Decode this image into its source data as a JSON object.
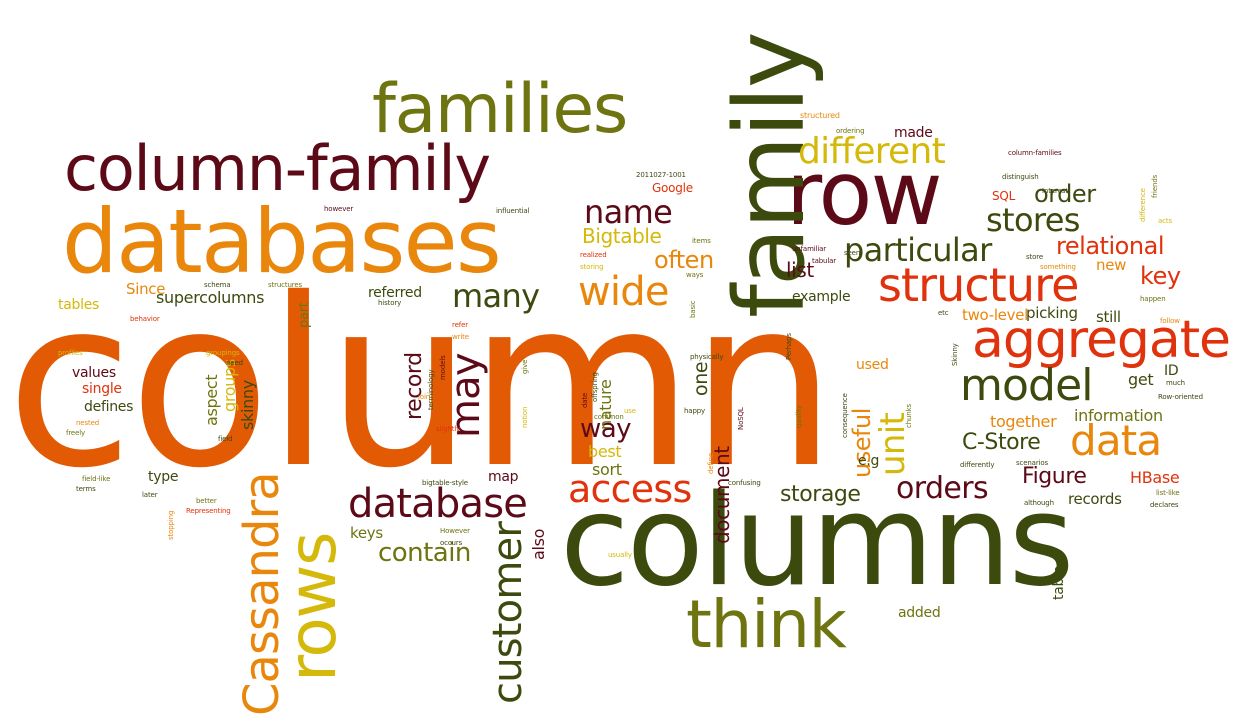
{
  "words": {
    "column": "column",
    "columns": "columns",
    "databases": "databases",
    "column_family": "column-family",
    "families": "families",
    "family": "family",
    "row": "row",
    "think": "think",
    "rows": "rows",
    "cassandra": "Cassandra",
    "customer": "customer",
    "database": "database",
    "model": "model",
    "aggregate": "aggregate",
    "data": "data",
    "structure": "structure",
    "different": "different",
    "access": "access",
    "wide": "wide",
    "many": "many",
    "name": "name",
    "may": "may",
    "particular": "particular",
    "stores": "stores",
    "order": "order",
    "relational": "relational",
    "orders": "orders",
    "often": "often",
    "record": "record",
    "contain": "contain",
    "storage": "storage",
    "keys": "keys",
    "way": "way",
    "unit": "unit",
    "useful": "useful",
    "figure": "Figure",
    "c_store": "C-Store",
    "bigtable": "Bigtable",
    "supercolumns": "supercolumns",
    "list": "list",
    "key": "key",
    "get": "get",
    "information": "information",
    "together": "together",
    "example": "example",
    "picking": "picking",
    "still": "still",
    "two_level": "two-level",
    "new": "new",
    "id": "ID",
    "hbase": "HBase",
    "records": "records",
    "document": "document",
    "best": "best",
    "sort": "sort",
    "map": "map",
    "also": "also",
    "one": "one",
    "nature": "nature",
    "e_g": "e.g",
    "used": "used",
    "added": "added",
    "table": "table",
    "referred": "referred",
    "part": "part",
    "since": "Since",
    "tables": "tables",
    "values": "values",
    "single": "single",
    "defines": "defines",
    "aspect": "aspect",
    "groups": "groups",
    "skinny": "skinny",
    "type": "type",
    "google": "Google",
    "sql": "SQL",
    "made": "made",
    "structured": "structured",
    "ordering": "ordering",
    "column_families": "column-families",
    "distinguish": "distinguish",
    "interest": "Interest",
    "friends": "friends",
    "difference": "difference",
    "acts": "acts",
    "something": "something",
    "happen": "happen",
    "follow": "follow",
    "much": "much",
    "row_oriented": "Row-oriented",
    "skinny_cap": "Skinny",
    "chunks": "chunks",
    "scenarios": "scenarios",
    "differently": "differently",
    "list_like": "list-like",
    "declares": "declares",
    "although": "although",
    "confusing": "confusing",
    "usually": "usually",
    "bigtable_style": "bigtable-style",
    "however_cap": "However",
    "occurs": "occurs",
    "better": "better",
    "representing": "Representing",
    "stopping": "stopping",
    "later": "later",
    "terms": "terms",
    "field_like": "field-like",
    "freely": "freely",
    "nested": "nested",
    "field": "field",
    "profiles": "profiles",
    "groupings": "groupings",
    "need": "need",
    "behavior": "behavior",
    "schema": "schema",
    "structures": "structures",
    "history": "history",
    "refer": "refer",
    "write": "write",
    "models": "models",
    "terminology": "terminology",
    "join": "join",
    "slightly": "slightly",
    "notion": "notion",
    "give": "give",
    "date": "date",
    "offspring": "offspring",
    "common": "common",
    "use": "use",
    "define": "define",
    "happy": "happy",
    "nosql": "NoSQL",
    "physically": "physically",
    "quality": "quality",
    "consequence": "consequence",
    "perhaps": "Perhaps",
    "etc": "etc",
    "however": "however",
    "influential": "influential",
    "date_code": "2011027-1001",
    "items": "items",
    "realized": "realized",
    "storing": "storing",
    "tabular": "tabular",
    "seen": "seen",
    "unfamiliar": "unfamiliar",
    "store": "store",
    "ways": "ways",
    "basic": "basic"
  },
  "colors": {
    "orange_red": "#e35a05",
    "dark_olive": "#3c4a0e",
    "olive": "#6e7410",
    "maroon": "#5c0a17",
    "orange": "#e8870c",
    "gold": "#d4b80a",
    "red_orange": "#e0320c"
  }
}
